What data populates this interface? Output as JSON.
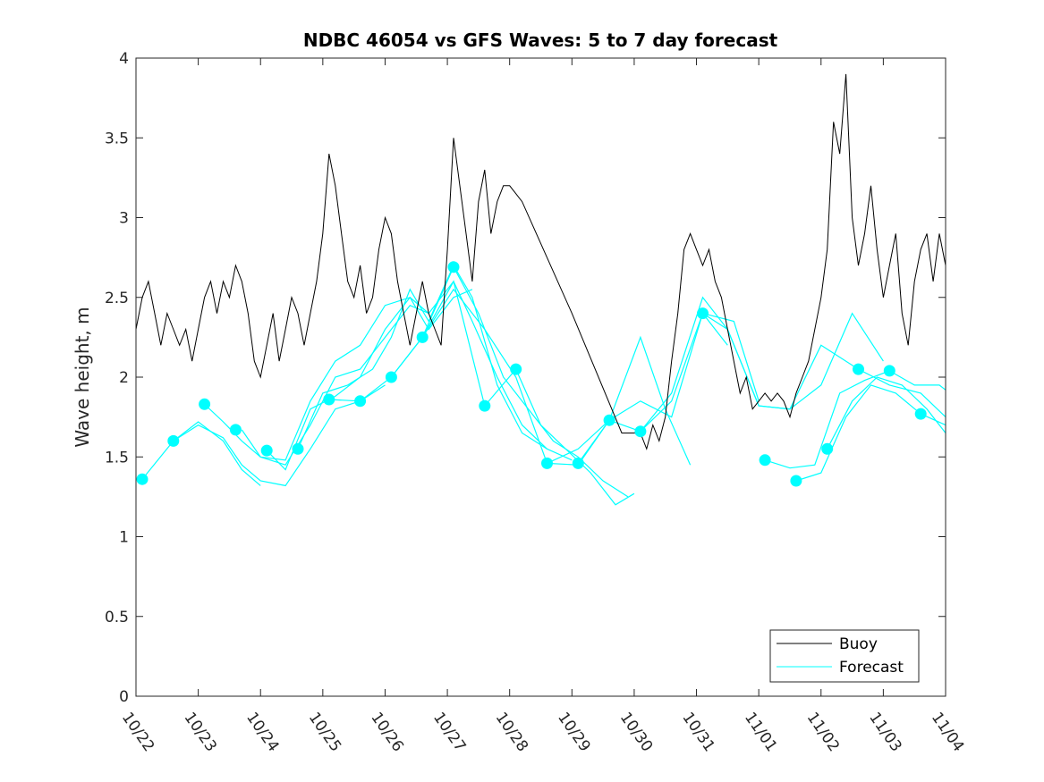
{
  "chart_data": {
    "type": "line",
    "title": "NDBC 46054 vs GFS Waves: 5 to 7 day forecast",
    "xlabel": "",
    "ylabel": "Wave height, m",
    "xlim": [
      0,
      13
    ],
    "ylim": [
      0,
      4
    ],
    "x_tick_values": [
      0,
      1,
      2,
      3,
      4,
      5,
      6,
      7,
      8,
      9,
      10,
      11,
      12,
      13
    ],
    "x_tick_labels": [
      "10/22",
      "10/23",
      "10/24",
      "10/25",
      "10/26",
      "10/27",
      "10/28",
      "10/29",
      "10/30",
      "10/31",
      "11/01",
      "11/02",
      "11/03",
      "11/04"
    ],
    "y_tick_values": [
      0,
      0.5,
      1,
      1.5,
      2,
      2.5,
      3,
      3.5,
      4
    ],
    "y_tick_labels": [
      "0",
      "0.5",
      "1",
      "1.5",
      "2",
      "2.5",
      "3",
      "3.5",
      "4"
    ],
    "legend": {
      "position": "bottom-right",
      "entries": [
        "Buoy",
        "Forecast"
      ]
    },
    "colors": {
      "buoy": "#000000",
      "forecast": "#00ffff",
      "axis": "#262626"
    },
    "series": [
      {
        "name": "Buoy",
        "color": "#000000",
        "x": [
          0,
          0.1,
          0.2,
          0.3,
          0.4,
          0.5,
          0.6,
          0.7,
          0.8,
          0.9,
          1.0,
          1.1,
          1.2,
          1.3,
          1.4,
          1.5,
          1.6,
          1.7,
          1.8,
          1.9,
          2.0,
          2.1,
          2.2,
          2.3,
          2.4,
          2.5,
          2.6,
          2.7,
          2.8,
          2.9,
          3.0,
          3.1,
          3.2,
          3.3,
          3.4,
          3.5,
          3.6,
          3.7,
          3.8,
          3.9,
          4.0,
          4.1,
          4.2,
          4.3,
          4.4,
          4.5,
          4.6,
          4.7,
          4.8,
          4.9,
          5.0,
          5.1,
          5.2,
          5.3,
          5.4,
          5.5,
          5.6,
          5.7,
          5.8,
          5.9,
          6.0,
          6.2,
          7.0,
          7.8,
          8.1,
          8.2,
          8.3,
          8.4,
          8.5,
          8.6,
          8.7,
          8.8,
          8.9,
          9.0,
          9.1,
          9.2,
          9.3,
          9.4,
          9.5,
          9.6,
          9.7,
          9.8,
          9.9,
          10.0,
          10.1,
          10.2,
          10.3,
          10.4,
          10.5,
          10.6,
          10.7,
          10.8,
          10.9,
          11.0,
          11.1,
          11.2,
          11.3,
          11.4,
          11.5,
          11.6,
          11.7,
          11.8,
          11.9,
          12.0,
          12.1,
          12.2,
          12.3,
          12.4,
          12.5,
          12.6,
          12.7,
          12.8,
          12.9,
          13.0
        ],
        "y": [
          2.3,
          2.5,
          2.6,
          2.4,
          2.2,
          2.4,
          2.3,
          2.2,
          2.3,
          2.1,
          2.3,
          2.5,
          2.6,
          2.4,
          2.6,
          2.5,
          2.7,
          2.6,
          2.4,
          2.1,
          2.0,
          2.2,
          2.4,
          2.1,
          2.3,
          2.5,
          2.4,
          2.2,
          2.4,
          2.6,
          2.9,
          3.4,
          3.2,
          2.9,
          2.6,
          2.5,
          2.7,
          2.4,
          2.5,
          2.8,
          3.0,
          2.9,
          2.6,
          2.4,
          2.2,
          2.4,
          2.6,
          2.4,
          2.3,
          2.2,
          2.8,
          3.5,
          3.2,
          2.9,
          2.6,
          3.1,
          3.3,
          2.9,
          3.1,
          3.2,
          3.2,
          3.1,
          2.4,
          1.65,
          1.65,
          1.55,
          1.7,
          1.6,
          1.75,
          2.1,
          2.4,
          2.8,
          2.9,
          2.8,
          2.7,
          2.8,
          2.6,
          2.5,
          2.3,
          2.1,
          1.9,
          2.0,
          1.8,
          1.85,
          1.9,
          1.85,
          1.9,
          1.85,
          1.75,
          1.9,
          2.0,
          2.1,
          2.3,
          2.5,
          2.8,
          3.6,
          3.4,
          3.9,
          3.0,
          2.7,
          2.9,
          3.2,
          2.8,
          2.5,
          2.7,
          2.9,
          2.4,
          2.2,
          2.6,
          2.8,
          2.9,
          2.6,
          2.9,
          2.7
        ]
      },
      {
        "name": "Forecast",
        "color": "#00ffff",
        "lines": [
          {
            "x": [
              0.1,
              0.6,
              1.0,
              1.4,
              1.7,
              2.0
            ],
            "y": [
              1.36,
              1.6,
              1.72,
              1.6,
              1.42,
              1.32
            ]
          },
          {
            "x": [
              0.6,
              1.0,
              1.4,
              1.7,
              2.0,
              2.4,
              2.8,
              3.2,
              3.6,
              4.0
            ],
            "y": [
              1.6,
              1.7,
              1.62,
              1.45,
              1.35,
              1.32,
              1.55,
              1.8,
              1.85,
              1.95
            ]
          },
          {
            "x": [
              1.1,
              1.4,
              1.7,
              2.0,
              2.4,
              2.8,
              3.2,
              3.6,
              4.0,
              4.4,
              4.7
            ],
            "y": [
              1.83,
              1.72,
              1.6,
              1.5,
              1.45,
              1.7,
              2.0,
              2.05,
              2.25,
              2.45,
              2.4
            ]
          },
          {
            "x": [
              1.7,
              2.0,
              2.4,
              2.8,
              3.2,
              3.6,
              4.0,
              4.4,
              4.7,
              5.1,
              5.4
            ],
            "y": [
              1.67,
              1.5,
              1.48,
              1.85,
              2.1,
              2.2,
              2.45,
              2.5,
              2.3,
              2.5,
              2.55
            ]
          },
          {
            "x": [
              2.1,
              2.4,
              2.8,
              3.2,
              3.6,
              4.0,
              4.4,
              4.7,
              5.1,
              5.4,
              5.8,
              6.2,
              6.6
            ],
            "y": [
              1.54,
              1.42,
              1.8,
              1.88,
              2.0,
              2.3,
              2.5,
              2.4,
              2.6,
              2.35,
              2.0,
              1.7,
              1.55
            ]
          },
          {
            "x": [
              2.6,
              3.0,
              3.4,
              3.8,
              4.1,
              4.4,
              4.7,
              5.1,
              5.4,
              5.8,
              6.2,
              6.6,
              7.0
            ],
            "y": [
              1.55,
              1.9,
              1.95,
              2.05,
              2.25,
              2.55,
              2.35,
              2.7,
              2.5,
              1.95,
              1.65,
              1.55,
              1.48
            ]
          },
          {
            "x": [
              3.1,
              3.6,
              4.1,
              4.6,
              5.1,
              5.5,
              5.9,
              6.3,
              6.7,
              7.1,
              7.5,
              7.9
            ],
            "y": [
              1.86,
              1.85,
              2.0,
              2.25,
              2.69,
              2.4,
              2.0,
              1.8,
              1.6,
              1.5,
              1.35,
              1.25
            ]
          },
          {
            "x": [
              4.1,
              4.6,
              5.1,
              5.6,
              6.1,
              6.5,
              6.9,
              7.3,
              7.7,
              8.0
            ],
            "y": [
              2.0,
              2.25,
              2.6,
              1.82,
              2.05,
              1.7,
              1.55,
              1.4,
              1.2,
              1.27
            ]
          },
          {
            "x": [
              4.6,
              5.1,
              5.6,
              6.1,
              6.6,
              7.1,
              7.6,
              8.1,
              8.5,
              8.9
            ],
            "y": [
              2.25,
              2.55,
              2.3,
              2.0,
              1.46,
              1.45,
              1.73,
              2.25,
              1.8,
              1.45
            ]
          },
          {
            "x": [
              6.6,
              7.1,
              7.6,
              8.1,
              8.6,
              9.1,
              9.5
            ],
            "y": [
              1.46,
              1.55,
              1.73,
              1.66,
              1.85,
              2.4,
              2.2
            ]
          },
          {
            "x": [
              7.1,
              7.6,
              8.1,
              8.6,
              9.1,
              9.6,
              10.0
            ],
            "y": [
              1.46,
              1.73,
              1.85,
              1.75,
              2.4,
              2.35,
              1.85
            ]
          },
          {
            "x": [
              8.1,
              8.6,
              9.1,
              9.5,
              10.0,
              10.5,
              11.0,
              11.5,
              12.0
            ],
            "y": [
              1.66,
              1.9,
              2.5,
              2.3,
              1.82,
              1.8,
              1.95,
              2.4,
              2.1
            ]
          },
          {
            "x": [
              9.1,
              9.5,
              10.0,
              10.5,
              11.0,
              11.6,
              12.1,
              12.6,
              13.0
            ],
            "y": [
              2.4,
              2.3,
              1.82,
              1.8,
              2.2,
              2.05,
              1.95,
              1.9,
              1.75
            ]
          },
          {
            "x": [
              10.1,
              10.5,
              10.9,
              11.3,
              11.7,
              12.1,
              12.5,
              12.9,
              13.0
            ],
            "y": [
              1.48,
              1.43,
              1.45,
              1.9,
              1.98,
              2.04,
              1.95,
              1.95,
              1.92
            ]
          },
          {
            "x": [
              10.6,
              11.0,
              11.4,
              11.8,
              12.2,
              12.6,
              13.0
            ],
            "y": [
              1.35,
              1.4,
              1.75,
              1.95,
              1.9,
              1.77,
              1.7
            ]
          },
          {
            "x": [
              11.1,
              11.5,
              11.9,
              12.3,
              12.7,
              13.0
            ],
            "y": [
              1.55,
              1.85,
              2.0,
              1.95,
              1.8,
              1.65
            ]
          }
        ],
        "markers": {
          "x": [
            0.1,
            0.6,
            1.1,
            1.6,
            2.1,
            2.6,
            3.1,
            3.6,
            4.1,
            4.6,
            5.1,
            5.6,
            6.1,
            6.6,
            7.1,
            7.6,
            8.1,
            9.1,
            10.1,
            10.6,
            11.1,
            11.6,
            12.1,
            12.6
          ],
          "y": [
            1.36,
            1.6,
            1.83,
            1.67,
            1.54,
            1.55,
            1.86,
            1.85,
            2.0,
            2.25,
            2.69,
            1.82,
            2.05,
            1.46,
            1.46,
            1.73,
            1.66,
            2.4,
            1.48,
            1.35,
            1.55,
            2.05,
            2.04,
            1.77
          ]
        }
      }
    ]
  }
}
